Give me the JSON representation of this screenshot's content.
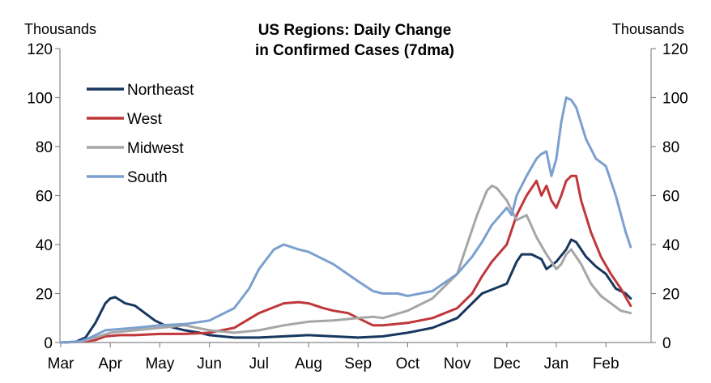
{
  "chart_data": {
    "type": "line",
    "title_lines": [
      "US Regions: Daily Change",
      "in Confirmed Cases (7dma)"
    ],
    "left_unit": "Thousands",
    "right_unit": "Thousands",
    "ylim": [
      0,
      120
    ],
    "yticks": [
      "0",
      "20",
      "40",
      "60",
      "80",
      "100",
      "120"
    ],
    "month_labels": [
      "Mar",
      "Apr",
      "May",
      "Jun",
      "Jul",
      "Aug",
      "Sep",
      "Oct",
      "Nov",
      "Dec",
      "Jan",
      "Feb"
    ],
    "legend_position": "top-left",
    "series": [
      {
        "name": "Northeast",
        "color": "#17375e",
        "points": [
          [
            0,
            0
          ],
          [
            0.3,
            0.3
          ],
          [
            0.5,
            2
          ],
          [
            0.7,
            8
          ],
          [
            0.9,
            16
          ],
          [
            1.0,
            18
          ],
          [
            1.1,
            18.5
          ],
          [
            1.3,
            16
          ],
          [
            1.5,
            15
          ],
          [
            1.7,
            12
          ],
          [
            1.9,
            9
          ],
          [
            2.1,
            7
          ],
          [
            2.3,
            6
          ],
          [
            2.5,
            5
          ],
          [
            2.8,
            4
          ],
          [
            3,
            3
          ],
          [
            3.5,
            2
          ],
          [
            4,
            2
          ],
          [
            4.5,
            2.5
          ],
          [
            5,
            3
          ],
          [
            5.5,
            2.5
          ],
          [
            6,
            2
          ],
          [
            6.5,
            2.5
          ],
          [
            7,
            4
          ],
          [
            7.5,
            6
          ],
          [
            8,
            10
          ],
          [
            8.5,
            20
          ],
          [
            9,
            24
          ],
          [
            9.2,
            33
          ],
          [
            9.3,
            36
          ],
          [
            9.5,
            36
          ],
          [
            9.7,
            34
          ],
          [
            9.8,
            30
          ],
          [
            10,
            33
          ],
          [
            10.2,
            38
          ],
          [
            10.3,
            42
          ],
          [
            10.4,
            41
          ],
          [
            10.6,
            35
          ],
          [
            10.8,
            31
          ],
          [
            11,
            28
          ],
          [
            11.2,
            22
          ],
          [
            11.4,
            20
          ],
          [
            11.5,
            18
          ]
        ]
      },
      {
        "name": "West",
        "color": "#c0373a",
        "points": [
          [
            0,
            0
          ],
          [
            0.4,
            0.3
          ],
          [
            0.7,
            1
          ],
          [
            0.9,
            2.5
          ],
          [
            1.2,
            3
          ],
          [
            1.5,
            3
          ],
          [
            2,
            3.5
          ],
          [
            2.5,
            3.5
          ],
          [
            3,
            4
          ],
          [
            3.5,
            6
          ],
          [
            4,
            12
          ],
          [
            4.5,
            16
          ],
          [
            4.8,
            16.5
          ],
          [
            5,
            16
          ],
          [
            5.3,
            14
          ],
          [
            5.5,
            13
          ],
          [
            5.8,
            12
          ],
          [
            6,
            10
          ],
          [
            6.3,
            7
          ],
          [
            6.5,
            7
          ],
          [
            7,
            8
          ],
          [
            7.5,
            10
          ],
          [
            8,
            14
          ],
          [
            8.3,
            20
          ],
          [
            8.5,
            27
          ],
          [
            8.7,
            33
          ],
          [
            9,
            40
          ],
          [
            9.2,
            52
          ],
          [
            9.4,
            60
          ],
          [
            9.6,
            66
          ],
          [
            9.7,
            60
          ],
          [
            9.8,
            64
          ],
          [
            9.9,
            58
          ],
          [
            10,
            55
          ],
          [
            10.1,
            60
          ],
          [
            10.2,
            66
          ],
          [
            10.3,
            68
          ],
          [
            10.4,
            68
          ],
          [
            10.5,
            58
          ],
          [
            10.7,
            45
          ],
          [
            10.9,
            35
          ],
          [
            11.1,
            28
          ],
          [
            11.3,
            22
          ],
          [
            11.5,
            15
          ]
        ]
      },
      {
        "name": "Midwest",
        "color": "#a6a6a6",
        "points": [
          [
            0,
            0
          ],
          [
            0.4,
            0.3
          ],
          [
            0.7,
            2
          ],
          [
            1,
            4
          ],
          [
            1.5,
            5
          ],
          [
            2,
            6
          ],
          [
            2.5,
            7
          ],
          [
            3,
            5
          ],
          [
            3.5,
            4
          ],
          [
            4,
            5
          ],
          [
            4.5,
            7
          ],
          [
            5,
            8.5
          ],
          [
            5.5,
            9
          ],
          [
            6,
            10
          ],
          [
            6.3,
            10.5
          ],
          [
            6.5,
            10
          ],
          [
            7,
            13
          ],
          [
            7.5,
            18
          ],
          [
            8,
            28
          ],
          [
            8.2,
            40
          ],
          [
            8.4,
            52
          ],
          [
            8.6,
            62
          ],
          [
            8.7,
            64
          ],
          [
            8.8,
            63
          ],
          [
            9,
            58
          ],
          [
            9.2,
            50
          ],
          [
            9.4,
            52
          ],
          [
            9.6,
            43
          ],
          [
            9.8,
            36
          ],
          [
            10,
            30
          ],
          [
            10.1,
            32
          ],
          [
            10.2,
            36
          ],
          [
            10.3,
            38
          ],
          [
            10.5,
            32
          ],
          [
            10.7,
            24
          ],
          [
            10.9,
            19
          ],
          [
            11.1,
            16
          ],
          [
            11.3,
            13
          ],
          [
            11.5,
            12
          ]
        ]
      },
      {
        "name": "South",
        "color": "#7ba0cf",
        "points": [
          [
            0,
            0
          ],
          [
            0.4,
            0.5
          ],
          [
            0.6,
            2
          ],
          [
            0.9,
            5
          ],
          [
            1.2,
            5.5
          ],
          [
            1.5,
            6
          ],
          [
            2,
            7
          ],
          [
            2.5,
            7.5
          ],
          [
            3,
            9
          ],
          [
            3.5,
            14
          ],
          [
            3.8,
            22
          ],
          [
            4,
            30
          ],
          [
            4.3,
            38
          ],
          [
            4.5,
            40
          ],
          [
            4.8,
            38
          ],
          [
            5,
            37
          ],
          [
            5.5,
            32
          ],
          [
            6,
            25
          ],
          [
            6.3,
            21
          ],
          [
            6.5,
            20
          ],
          [
            6.8,
            20
          ],
          [
            7,
            19
          ],
          [
            7.5,
            21
          ],
          [
            8,
            28
          ],
          [
            8.3,
            35
          ],
          [
            8.5,
            41
          ],
          [
            8.7,
            48
          ],
          [
            9,
            55
          ],
          [
            9.1,
            52
          ],
          [
            9.2,
            60
          ],
          [
            9.4,
            68
          ],
          [
            9.6,
            75
          ],
          [
            9.7,
            77
          ],
          [
            9.8,
            78
          ],
          [
            9.9,
            68
          ],
          [
            10,
            75
          ],
          [
            10.1,
            90
          ],
          [
            10.2,
            100
          ],
          [
            10.3,
            99
          ],
          [
            10.4,
            96
          ],
          [
            10.6,
            83
          ],
          [
            10.8,
            75
          ],
          [
            11,
            72
          ],
          [
            11.2,
            60
          ],
          [
            11.4,
            45
          ],
          [
            11.5,
            39
          ]
        ]
      }
    ]
  }
}
